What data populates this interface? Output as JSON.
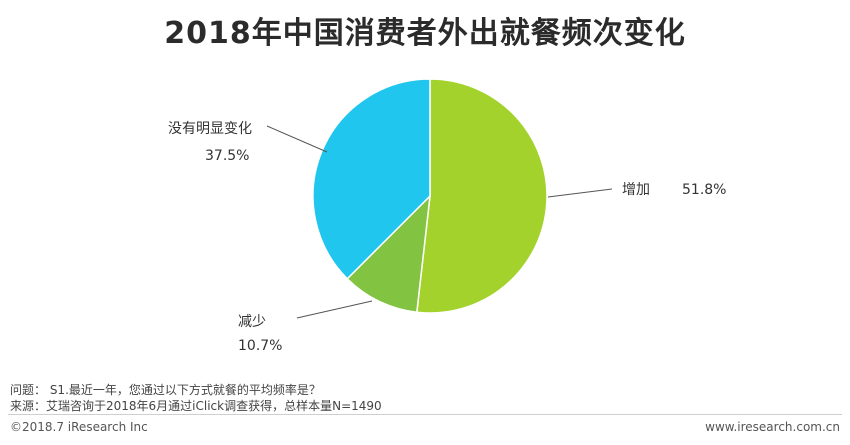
{
  "title": "2018年中国消费者外出就餐频次变化",
  "chart_data": {
    "type": "pie",
    "title": "2018年中国消费者外出就餐频次变化",
    "slices": [
      {
        "label": "增加",
        "value": 51.8,
        "value_label": "51.8%",
        "color": "#a4d22c"
      },
      {
        "label": "减少",
        "value": 10.7,
        "value_label": "10.7%",
        "color": "#82c341"
      },
      {
        "label": "没有明显变化",
        "value": 37.5,
        "value_label": "37.5%",
        "color": "#20c6ee"
      }
    ],
    "start": "12 o'clock",
    "direction": "clockwise"
  },
  "notes": {
    "question": "问题： S1.最近一年，您通过以下方式就餐的平均频率是？",
    "source": "来源：艾瑞咨询于2018年6月通过iClick调查获得，总样本量N=1490"
  },
  "footer": {
    "copyright": "©2018.7 iResearch Inc",
    "url": "www.iresearch.com.cn"
  }
}
